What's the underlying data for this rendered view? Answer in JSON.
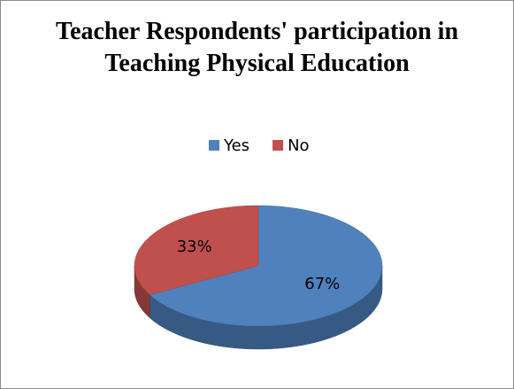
{
  "chart_data": {
    "type": "pie3d",
    "title": "Teacher Respondents' participation in Teaching Physical Education",
    "categories": [
      "Yes",
      "No"
    ],
    "values": [
      67,
      33
    ],
    "value_labels": [
      "67%",
      "33%"
    ],
    "colors": [
      "#4f81bd",
      "#c0504d"
    ],
    "legend": "top"
  }
}
